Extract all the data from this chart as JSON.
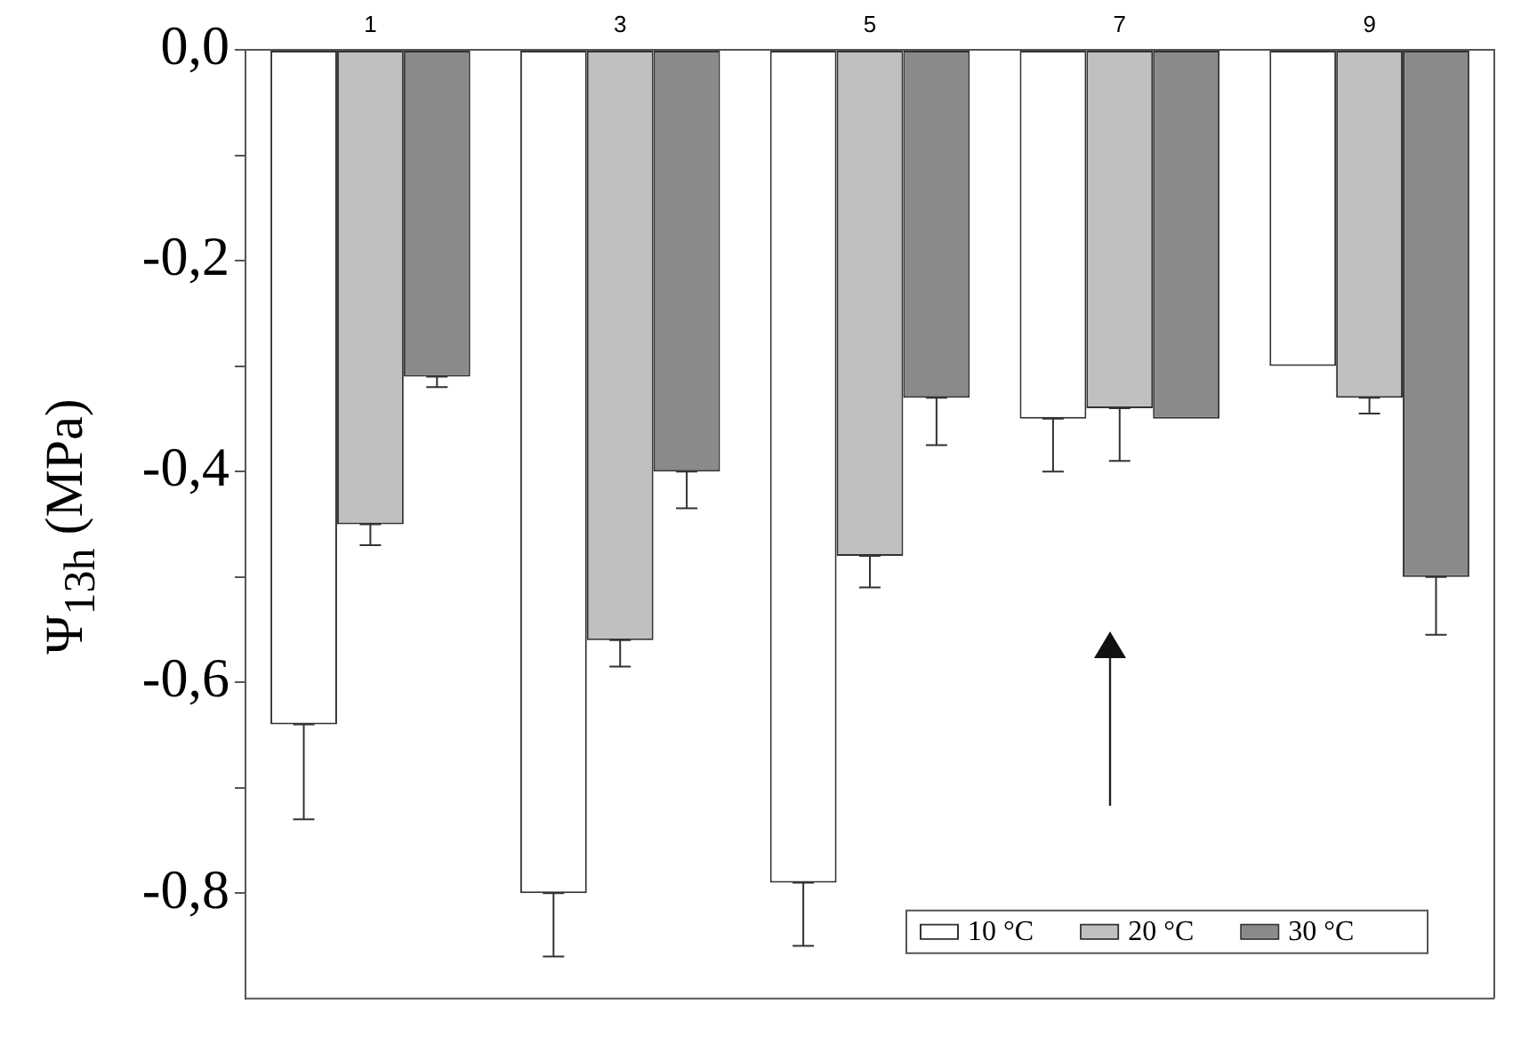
{
  "chart_data": {
    "type": "bar",
    "ylabel": "Ψ$_{13h}$ (MPa)",
    "categories": [
      "1",
      "3",
      "5",
      "7",
      "9"
    ],
    "series": [
      {
        "name": "10 °C",
        "color": "#ffffff",
        "values": [
          -0.64,
          -0.8,
          -0.79,
          -0.35,
          -0.3
        ],
        "errors": [
          [
            -0.73,
            -0.64
          ],
          [
            -0.86,
            -0.8
          ],
          [
            -0.85,
            -0.79
          ],
          [
            -0.4,
            -0.35
          ],
          null
        ]
      },
      {
        "name": "20 °C",
        "color": "#c0c0c0",
        "values": [
          -0.45,
          -0.56,
          -0.48,
          -0.34,
          -0.33
        ],
        "errors": [
          [
            -0.47,
            -0.45
          ],
          [
            -0.585,
            -0.56
          ],
          [
            -0.51,
            -0.48
          ],
          [
            -0.39,
            -0.34
          ],
          [
            -0.345,
            -0.33
          ]
        ]
      },
      {
        "name": "30 °C",
        "color": "#8a8a8a",
        "values": [
          -0.31,
          -0.4,
          -0.33,
          -0.35,
          -0.5
        ],
        "errors": [
          [
            -0.32,
            -0.31
          ],
          [
            -0.435,
            -0.4
          ],
          [
            -0.375,
            -0.33
          ],
          null,
          [
            -0.555,
            -0.5
          ]
        ]
      }
    ],
    "ylim": [
      -0.9,
      0
    ],
    "yticks": [
      {
        "value": 0,
        "label": "0,0"
      },
      {
        "value": -0.1,
        "label": null
      },
      {
        "value": -0.2,
        "label": "-0,2"
      },
      {
        "value": -0.3,
        "label": null
      },
      {
        "value": -0.4,
        "label": "-0,4"
      },
      {
        "value": -0.5,
        "label": null
      },
      {
        "value": -0.6,
        "label": "-0,6"
      },
      {
        "value": -0.7,
        "label": null
      },
      {
        "value": -0.8,
        "label": "-0,8"
      }
    ],
    "grid": false,
    "legend": "bottom right"
  }
}
